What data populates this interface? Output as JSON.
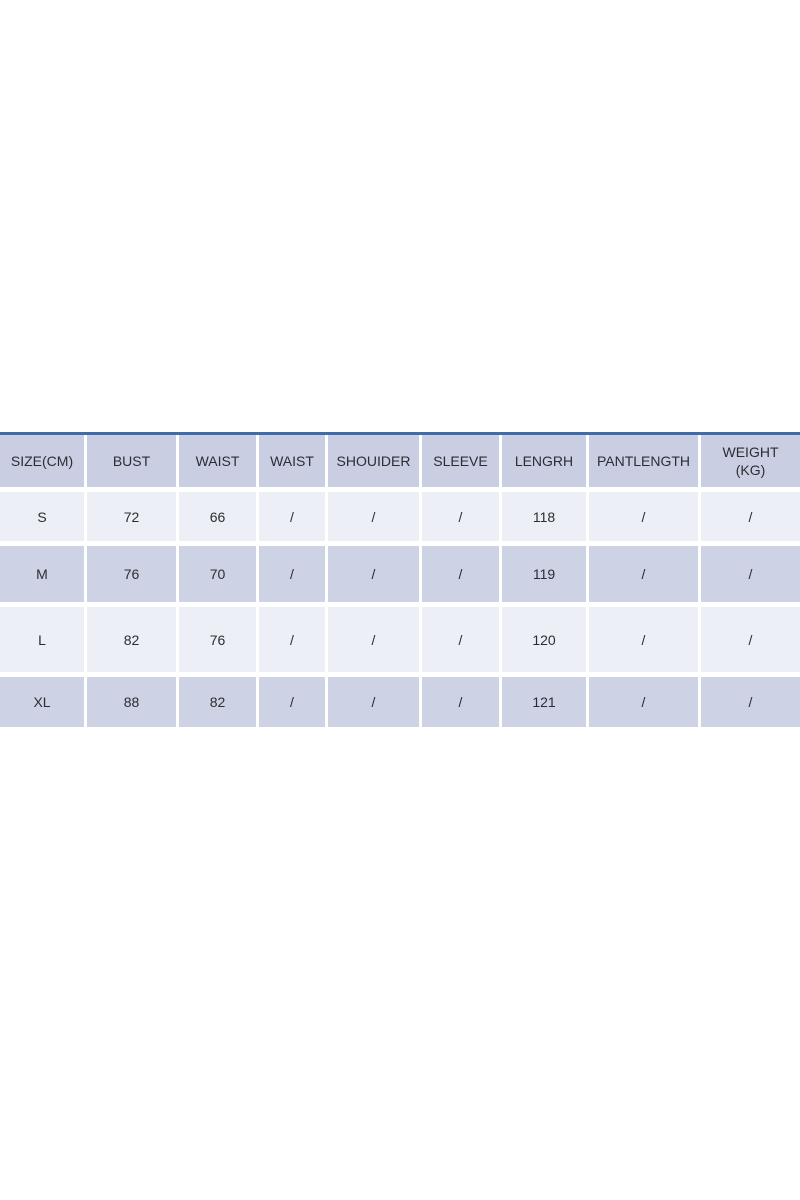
{
  "chart_data": {
    "type": "table",
    "columns": [
      "SIZE(CM)",
      "BUST",
      "WAIST",
      "WAIST",
      "SHOUIDER",
      "SLEEVE",
      "LENGRH",
      "PANTLENGTH",
      "WEIGHT\n(KG)"
    ],
    "rows": [
      [
        "S",
        "72",
        "66",
        "/",
        "/",
        "/",
        "118",
        "/",
        "/"
      ],
      [
        "M",
        "76",
        "70",
        "/",
        "/",
        "/",
        "119",
        "/",
        "/"
      ],
      [
        "L",
        "82",
        "76",
        "/",
        "/",
        "/",
        "120",
        "/",
        "/"
      ],
      [
        "XL",
        "88",
        "82",
        "/",
        "/",
        "/",
        "121",
        "/",
        "/"
      ]
    ]
  },
  "colors": {
    "page_bg": "#ffffff",
    "top_border": "#3f6ca6",
    "header_bg": "#c9cee3",
    "row_light_bg": "#edeff6",
    "row_dark_bg": "#cdd2e5",
    "text": "#2b2d33"
  }
}
